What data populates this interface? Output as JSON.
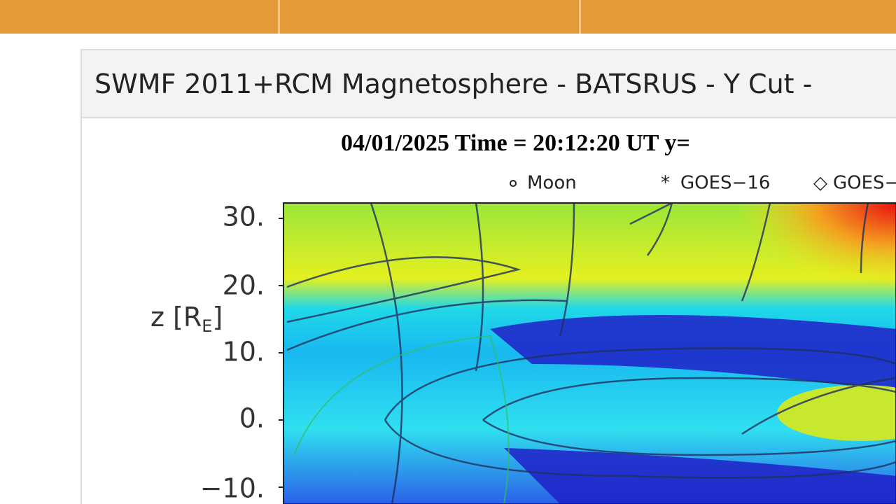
{
  "panel": {
    "title": "SWMF 2011+RCM Magnetosphere - BATSRUS - Y Cut -"
  },
  "plot": {
    "header": "04/01/2025 Time = 20:12:20 UT y=",
    "legend": [
      "Moon",
      "GOES−16",
      "GOES−"
    ],
    "axis_label": {
      "main": "z [R",
      "subscript": "E",
      "close": "]"
    },
    "y_tick_labels": [
      "30.",
      "20.",
      "10.",
      "0.",
      "−10."
    ]
  }
}
